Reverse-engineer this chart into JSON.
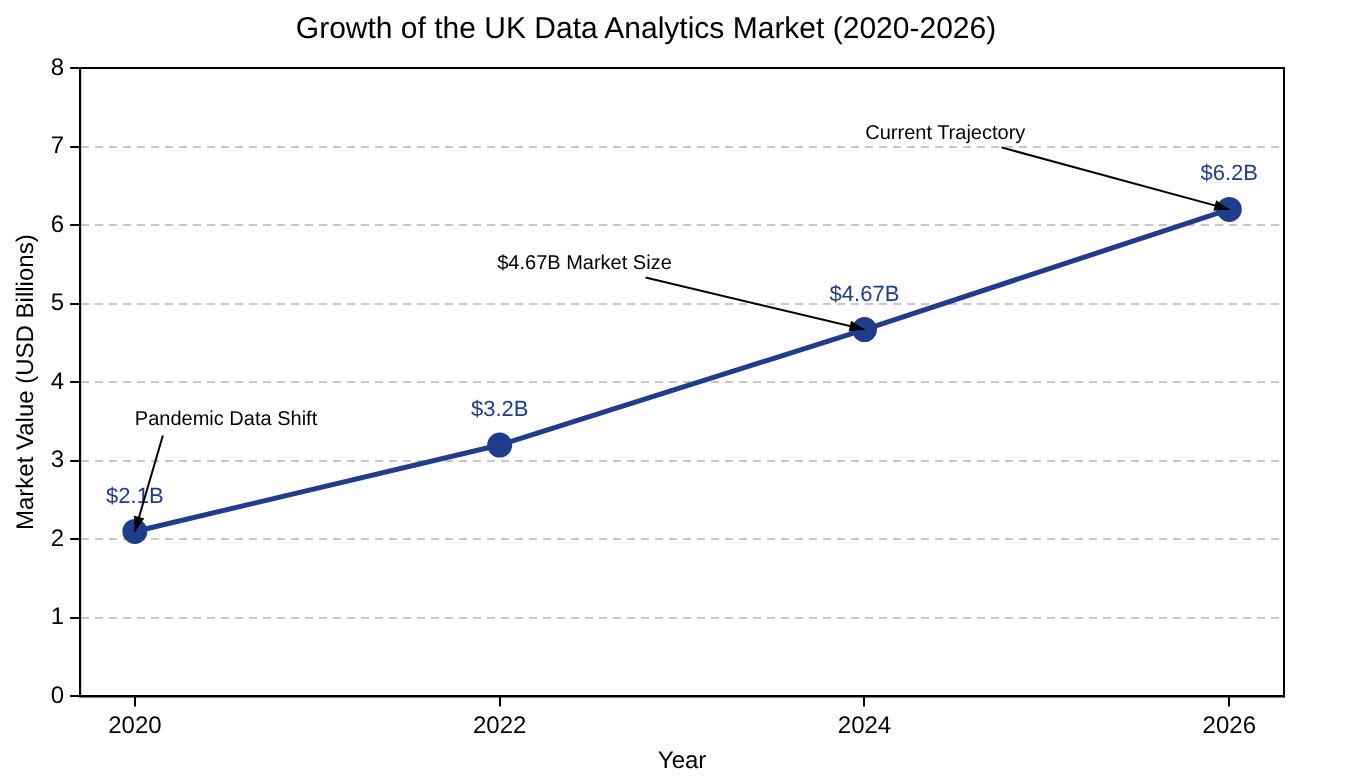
{
  "chart_data": {
    "type": "line",
    "title": "Growth of the UK Data Analytics Market (2020-2026)",
    "xlabel": "Year",
    "ylabel": "Market Value (USD Billions)",
    "x": [
      2020,
      2022,
      2024,
      2026
    ],
    "series": [
      {
        "color": "#1f3d8c",
        "values": [
          2.1,
          3.2,
          4.67,
          6.2
        ],
        "value_labels": [
          "$2.1B",
          "$3.2B",
          "$4.67B",
          "$6.2B"
        ]
      }
    ],
    "xlim": [
      2019.7,
      2026.3
    ],
    "xticks": [
      2020,
      2022,
      2024,
      2026
    ],
    "ylim": [
      0,
      8
    ],
    "yticks": [
      0,
      1,
      2,
      3,
      4,
      5,
      6,
      7,
      8
    ],
    "grid": "y",
    "legend": false,
    "marker": "circle",
    "line_style": "solid",
    "annotations": [
      {
        "text": "Pandemic Data Shift",
        "x": 2020,
        "y": 2.1
      },
      {
        "text": "$4.67B Market Size",
        "x": 2024,
        "y": 4.67
      },
      {
        "text": "Current Trajectory",
        "x": 2026,
        "y": 6.2
      }
    ]
  }
}
